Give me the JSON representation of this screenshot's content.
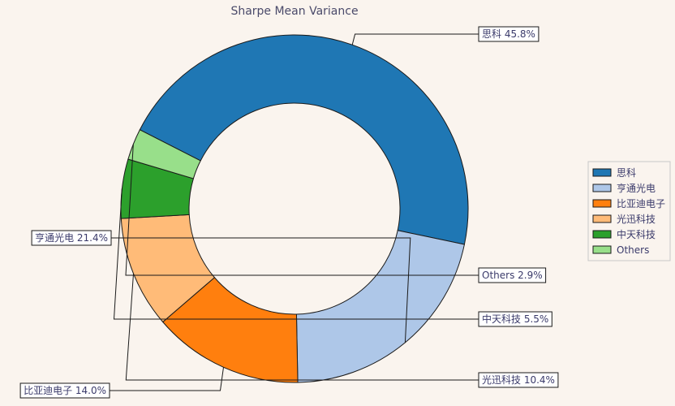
{
  "chart_data": {
    "type": "pie",
    "title": "Sharpe Mean Variance",
    "donut": true,
    "legend_position": "right",
    "slices": [
      {
        "label": "思科",
        "value": 45.8,
        "pct_label": "45.8%",
        "color": "#1f77b4"
      },
      {
        "label": "亨通光电",
        "value": 21.4,
        "pct_label": "21.4%",
        "color": "#aec7e8"
      },
      {
        "label": "比亚迪电子",
        "value": 14.0,
        "pct_label": "14.0%",
        "color": "#ff7f0e"
      },
      {
        "label": "光迅科技",
        "value": 10.4,
        "pct_label": "10.4%",
        "color": "#ffbb78"
      },
      {
        "label": "中天科技",
        "value": 5.5,
        "pct_label": "5.5%",
        "color": "#2ca02c"
      },
      {
        "label": "Others",
        "value": 2.9,
        "pct_label": "2.9%",
        "color": "#98df8a"
      }
    ]
  }
}
